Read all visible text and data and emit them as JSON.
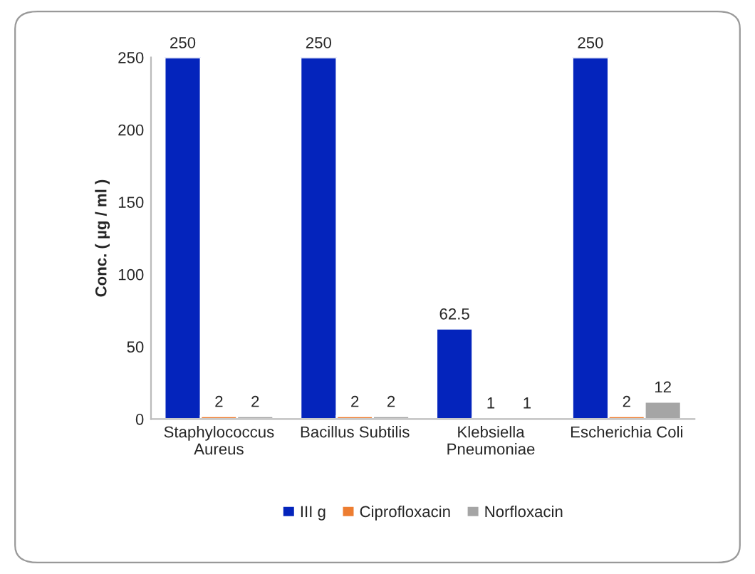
{
  "chart_data": {
    "type": "bar",
    "ylabel": "Conc. ( µg / ml )",
    "categories": [
      "Staphylococcus\nAureus",
      "Bacillus Subtilis",
      "Klebsiella\nPneumoniae",
      "Escherichia Coli"
    ],
    "series": [
      {
        "name": "III g",
        "color": "#0424bc",
        "values": [
          250,
          250,
          62.5,
          250
        ]
      },
      {
        "name": "Ciprofloxacin",
        "color": "#ed7d31",
        "values": [
          2,
          2,
          1,
          2
        ]
      },
      {
        "name": "Norfloxacin",
        "color": "#a5a5a5",
        "values": [
          2,
          2,
          1,
          12
        ]
      }
    ],
    "ylim": [
      0,
      250
    ],
    "yticks": [
      0,
      50,
      100,
      150,
      200,
      250
    ],
    "data_labels": true,
    "grid": false,
    "legend": "bottom"
  }
}
